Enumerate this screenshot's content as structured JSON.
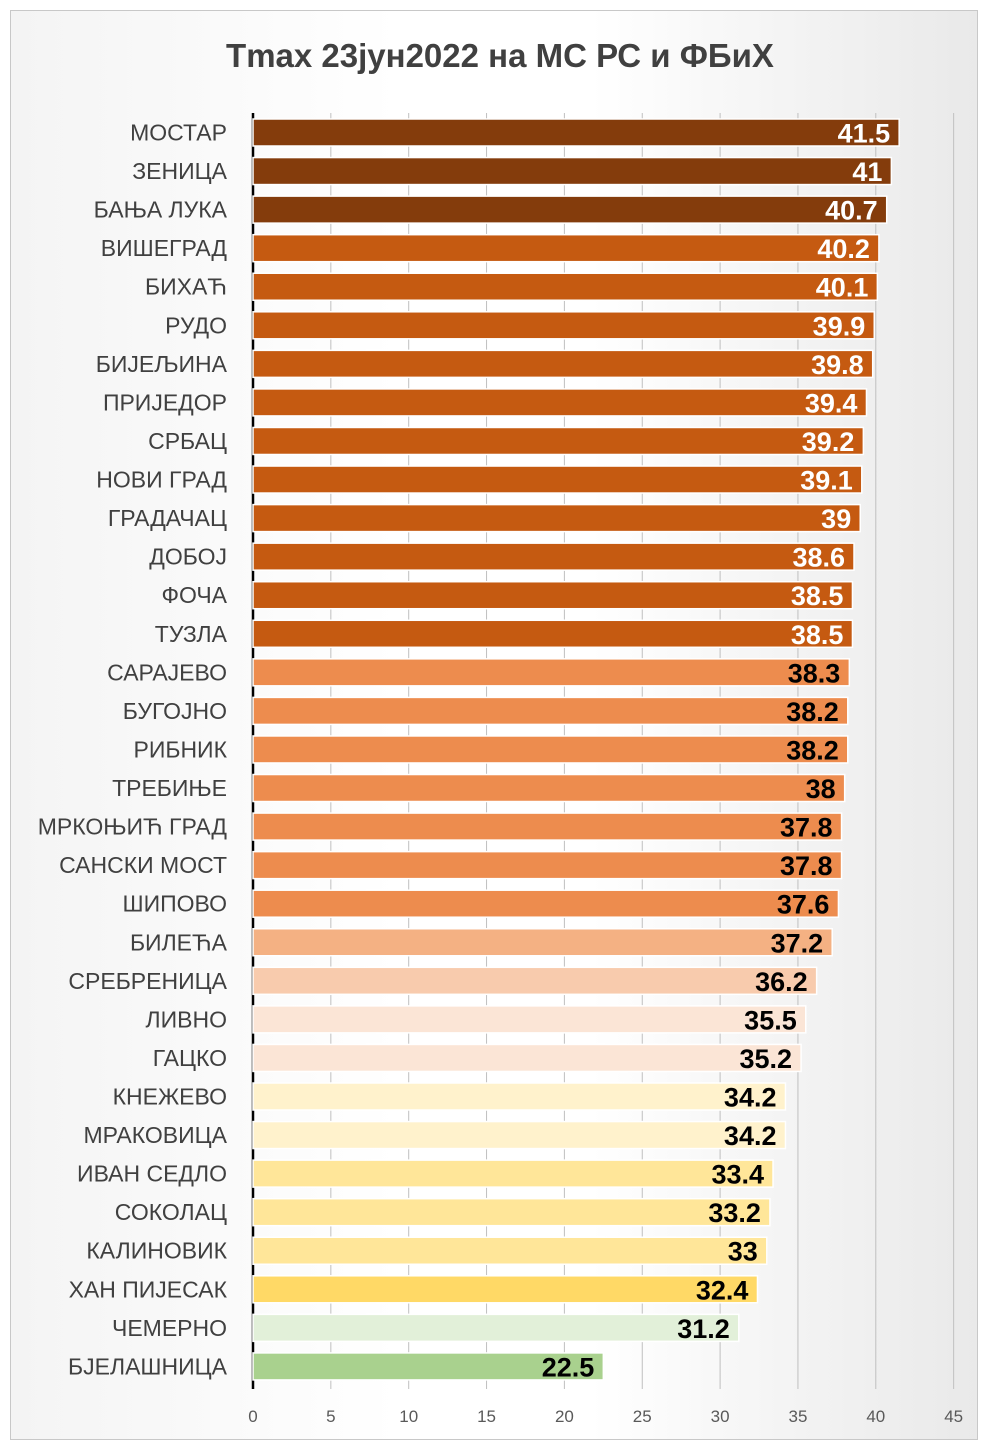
{
  "chart_data": {
    "type": "bar",
    "orientation": "horizontal",
    "title": "Tmax 23јун2022 на МС РС и ФБиХ",
    "xlim": [
      0,
      45
    ],
    "ticks": [
      "0",
      "5",
      "10",
      "15",
      "20",
      "25",
      "30",
      "35",
      "40",
      "45"
    ],
    "grid": "vertical",
    "categories": [
      "МОСТАР",
      "ЗЕНИЦА",
      "БАЊА ЛУКА",
      "ВИШЕГРАД",
      "БИХАЋ",
      "РУДО",
      "БИЈЕЉИНА",
      "ПРИЈЕДОР",
      "СРБАЦ",
      "НОВИ ГРАД",
      "ГРАДАЧАЦ",
      "ДОБОЈ",
      "ФОЧА",
      "ТУЗЛА",
      "САРАЈЕВО",
      "БУГОЈНО",
      "РИБНИК",
      "ТРЕБИЊЕ",
      "МРКОЊИЋ ГРАД",
      "САНСКИ МОСТ",
      "ШИПОВО",
      "БИЛЕЋА",
      "СРЕБРЕНИЦА",
      "ЛИВНО",
      "ГАЦКО",
      "КНЕЖЕВО",
      "МРАКОВИЦА",
      "ИВАН СЕДЛО",
      "СОКОЛАЦ",
      "КАЛИНОВИК",
      "ХАН ПИЈЕСАК",
      "ЧЕМЕРНО",
      "БЈЕЛАШНИЦА"
    ],
    "values": [
      41.5,
      41,
      40.7,
      40.2,
      40.1,
      39.9,
      39.8,
      39.4,
      39.2,
      39.1,
      39,
      38.6,
      38.5,
      38.5,
      38.3,
      38.2,
      38.2,
      38,
      37.8,
      37.8,
      37.6,
      37.2,
      36.2,
      35.5,
      35.2,
      34.2,
      34.2,
      33.4,
      33.2,
      33,
      32.4,
      31.2,
      22.5
    ],
    "value_labels": [
      "41.5",
      "41",
      "40.7",
      "40.2",
      "40.1",
      "39.9",
      "39.8",
      "39.4",
      "39.2",
      "39.1",
      "39",
      "38.6",
      "38.5",
      "38.5",
      "38.3",
      "38.2",
      "38.2",
      "38",
      "37.8",
      "37.8",
      "37.6",
      "37.2",
      "36.2",
      "35.5",
      "35.2",
      "34.2",
      "34.2",
      "33.4",
      "33.2",
      "33",
      "32.4",
      "31.2",
      "22.5"
    ],
    "bar_colors": [
      "#843C0C",
      "#843C0C",
      "#843C0C",
      "#C55A11",
      "#C55A11",
      "#C55A11",
      "#C55A11",
      "#C55A11",
      "#C55A11",
      "#C55A11",
      "#C55A11",
      "#C55A11",
      "#C55A11",
      "#C55A11",
      "#ED8C4E",
      "#ED8C4E",
      "#ED8C4E",
      "#ED8C4E",
      "#ED8C4E",
      "#ED8C4E",
      "#ED8C4E",
      "#F4B183",
      "#F8CBAD",
      "#FBE5D6",
      "#FBE5D6",
      "#FFF2CC",
      "#FFF2CC",
      "#FFE699",
      "#FFE699",
      "#FFE699",
      "#FFD966",
      "#E2F0D9",
      "#A9D18E"
    ],
    "label_colors": [
      "#ffffff",
      "#ffffff",
      "#ffffff",
      "#ffffff",
      "#ffffff",
      "#ffffff",
      "#ffffff",
      "#ffffff",
      "#ffffff",
      "#ffffff",
      "#ffffff",
      "#ffffff",
      "#ffffff",
      "#ffffff",
      "#000000",
      "#000000",
      "#000000",
      "#000000",
      "#000000",
      "#000000",
      "#000000",
      "#000000",
      "#000000",
      "#000000",
      "#000000",
      "#000000",
      "#000000",
      "#000000",
      "#000000",
      "#000000",
      "#000000",
      "#000000",
      "#000000"
    ]
  }
}
